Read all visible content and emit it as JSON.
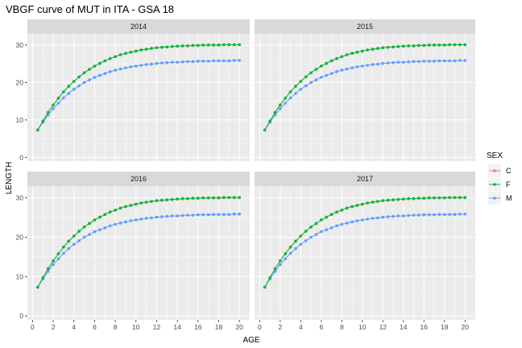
{
  "chart_data": {
    "type": "line",
    "title": "VBGF curve of MUT in ITA - GSA 18",
    "xlabel": "AGE",
    "ylabel": "LENGTH",
    "xlim": [
      -0.5,
      21
    ],
    "ylim": [
      -1,
      33
    ],
    "x_ticks": [
      0,
      2,
      4,
      6,
      8,
      10,
      12,
      14,
      16,
      18,
      20
    ],
    "y_ticks": [
      0,
      10,
      20,
      30
    ],
    "grid": true,
    "legend": {
      "title": "SEX",
      "position": "right"
    },
    "panels": [
      "2014",
      "2015",
      "2016",
      "2017"
    ],
    "x": [
      0.5,
      1,
      1.5,
      2,
      2.5,
      3,
      3.5,
      4,
      4.5,
      5,
      5.5,
      6,
      6.5,
      7,
      7.5,
      8,
      8.5,
      9,
      9.5,
      10,
      10.5,
      11,
      11.5,
      12,
      12.5,
      13,
      13.5,
      14,
      14.5,
      15,
      15.5,
      16,
      16.5,
      17,
      17.5,
      18,
      18.5,
      19,
      19.5,
      20
    ],
    "series": [
      {
        "name": "C",
        "color": "#F8766D",
        "values": [
          7.3,
          9.7,
          12.0,
          14.0,
          15.8,
          17.5,
          19.0,
          20.3,
          21.5,
          22.6,
          23.5,
          24.4,
          25.1,
          25.8,
          26.4,
          26.9,
          27.4,
          27.8,
          28.1,
          28.4,
          28.7,
          28.9,
          29.1,
          29.3,
          29.4,
          29.5,
          29.6,
          29.7,
          29.8,
          29.8,
          29.9,
          29.9,
          30.0,
          30.0,
          30.0,
          30.0,
          30.1,
          30.1,
          30.1,
          30.1
        ]
      },
      {
        "name": "F",
        "color": "#00BA38",
        "values": [
          7.3,
          9.7,
          12.0,
          14.0,
          15.8,
          17.5,
          19.0,
          20.3,
          21.5,
          22.6,
          23.5,
          24.4,
          25.1,
          25.8,
          26.4,
          26.9,
          27.4,
          27.8,
          28.1,
          28.4,
          28.7,
          28.9,
          29.1,
          29.3,
          29.4,
          29.5,
          29.6,
          29.7,
          29.8,
          29.8,
          29.9,
          29.9,
          30.0,
          30.0,
          30.0,
          30.0,
          30.1,
          30.1,
          30.1,
          30.1
        ]
      },
      {
        "name": "M",
        "color": "#619CFF",
        "values": [
          7.3,
          9.4,
          11.3,
          13.0,
          14.5,
          15.9,
          17.1,
          18.2,
          19.1,
          20.0,
          20.7,
          21.4,
          21.9,
          22.4,
          22.9,
          23.3,
          23.6,
          23.9,
          24.2,
          24.4,
          24.6,
          24.8,
          24.9,
          25.1,
          25.2,
          25.3,
          25.4,
          25.4,
          25.5,
          25.6,
          25.6,
          25.7,
          25.7,
          25.7,
          25.8,
          25.8,
          25.8,
          25.8,
          25.9,
          25.9
        ]
      }
    ]
  }
}
